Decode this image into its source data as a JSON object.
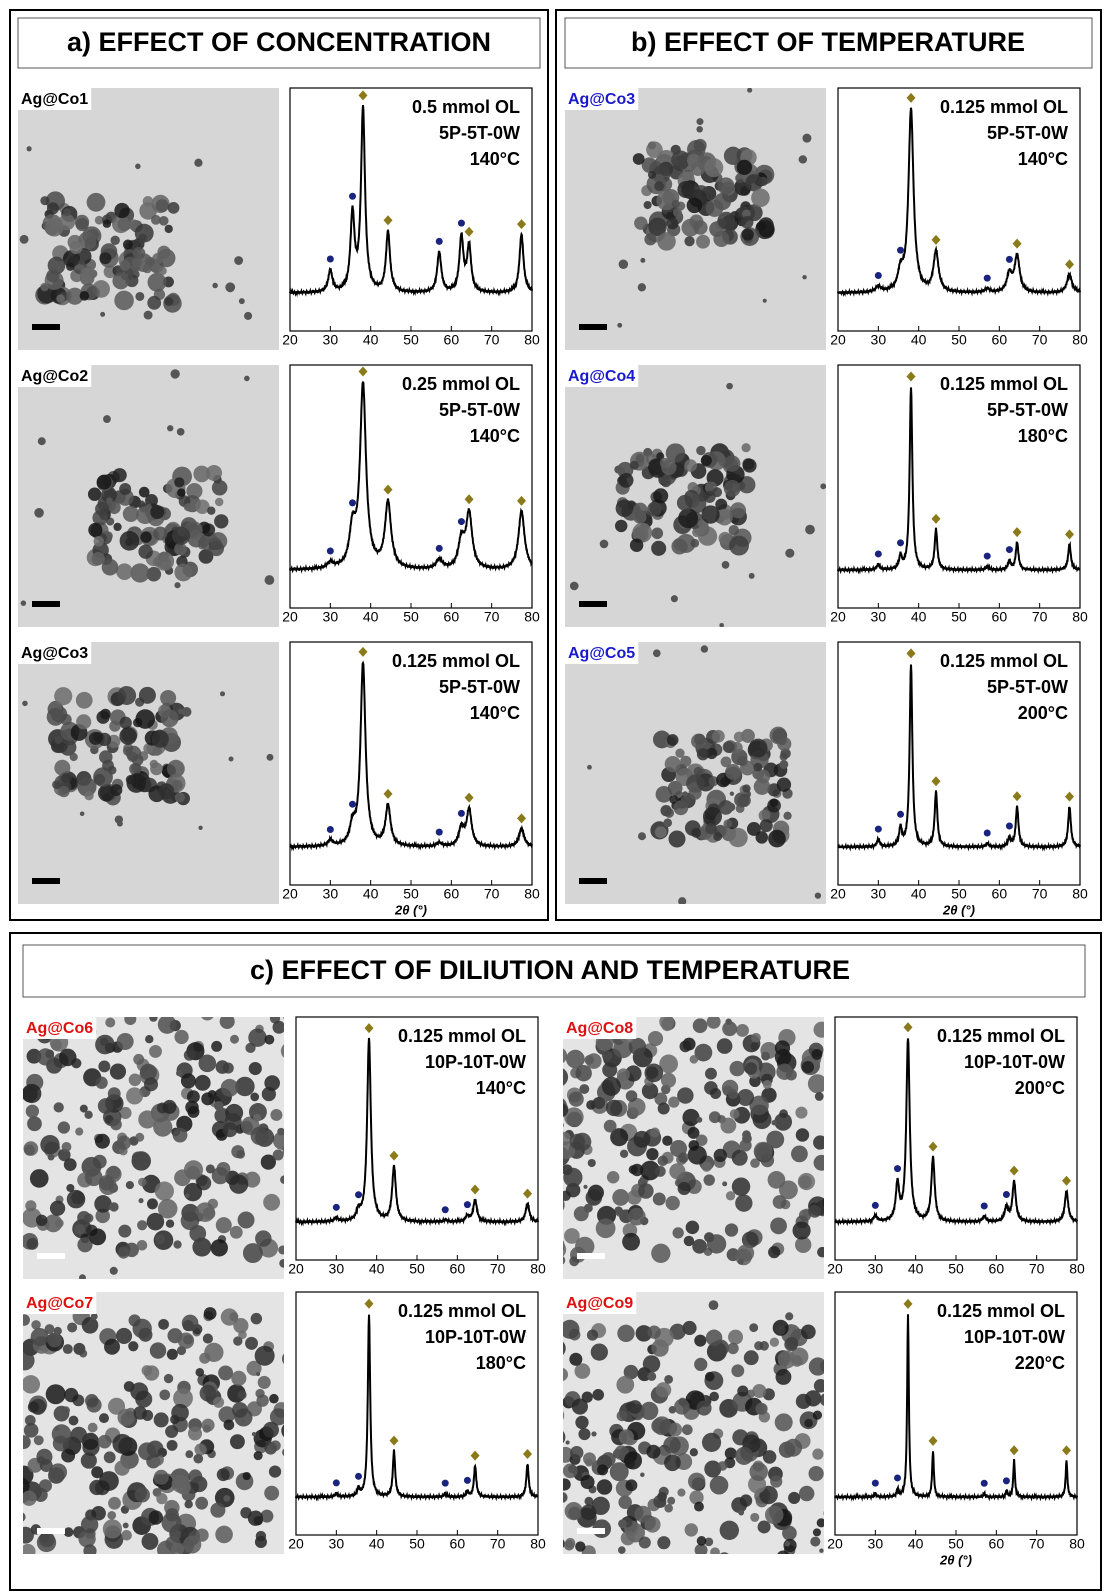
{
  "xrd": {
    "xlim": [
      20,
      80
    ],
    "xticks": [
      20,
      30,
      40,
      50,
      60,
      70,
      80
    ],
    "xlabel": "2θ (°)",
    "ag_peaks": [
      38.1,
      44.3,
      64.4,
      77.4
    ],
    "co_peaks": [
      30,
      35.5,
      57,
      62.5
    ],
    "ag_color": "#8a7a1a",
    "co_color": "#1a237e"
  },
  "panels": [
    {
      "title": "a) EFFECT OF CONCENTRATION",
      "label_color": "#000000",
      "samples": [
        {
          "label": "Ag@Co1",
          "conditions": [
            "0.5 mmol OL",
            "5P-5T-0W",
            "140°C"
          ],
          "ag_heights": [
            1,
            0.33,
            0.25,
            0.32
          ],
          "co_heights": [
            0.12,
            0.42,
            0.22,
            0.3
          ],
          "peak_width": 1.2
        },
        {
          "label": "Ag@Co2",
          "conditions": [
            "0.25 mmol OL",
            "5P-5T-0W",
            "140°C"
          ],
          "ag_heights": [
            1,
            0.36,
            0.3,
            0.32
          ],
          "co_heights": [
            0.03,
            0.2,
            0.05,
            0.15
          ],
          "peak_width": 1.8
        },
        {
          "label": "Ag@Co3",
          "conditions": [
            "0.125 mmol OL",
            "5P-5T-0W",
            "140°C"
          ],
          "ag_heights": [
            1,
            0.22,
            0.2,
            0.1
          ],
          "co_heights": [
            0.03,
            0.1,
            0.02,
            0.1
          ],
          "peak_width": 1.5
        }
      ]
    },
    {
      "title": "b) EFFECT OF TEMPERATURE",
      "label_color": "#1a1acc",
      "samples": [
        {
          "label": "Ag@Co3",
          "conditions": [
            "0.125 mmol OL",
            "5P-5T-0W",
            "140°C"
          ],
          "ag_heights": [
            1,
            0.22,
            0.2,
            0.1
          ],
          "co_heights": [
            0.03,
            0.1,
            0.02,
            0.1
          ],
          "peak_width": 1.5
        },
        {
          "label": "Ag@Co4",
          "conditions": [
            "0.125 mmol OL",
            "5P-5T-0W",
            "180°C"
          ],
          "ag_heights": [
            1,
            0.22,
            0.15,
            0.14
          ],
          "co_heights": [
            0.03,
            0.07,
            0.02,
            0.05
          ],
          "peak_width": 0.8
        },
        {
          "label": "Ag@Co5",
          "conditions": [
            "0.125 mmol OL",
            "5P-5T-0W",
            "200°C"
          ],
          "ag_heights": [
            1,
            0.3,
            0.22,
            0.22
          ],
          "co_heights": [
            0.04,
            0.1,
            0.02,
            0.05
          ],
          "peak_width": 0.8
        }
      ]
    },
    {
      "title": "c) EFFECT OF DILIUTION AND TEMPERATURE",
      "label_color": "#e01010",
      "samples": [
        {
          "label": "Ag@Co6",
          "conditions": [
            "0.125 mmol OL",
            "10P-10T-0W",
            "140°C"
          ],
          "ag_heights": [
            1,
            0.3,
            0.12,
            0.1
          ],
          "co_heights": [
            0.02,
            0.05,
            0.01,
            0.03
          ],
          "peak_width": 1.1
        },
        {
          "label": "Ag@Co7",
          "conditions": [
            "0.125 mmol OL",
            "10P-10T-0W",
            "180°C"
          ],
          "ag_heights": [
            1,
            0.25,
            0.17,
            0.18
          ],
          "co_heights": [
            0.02,
            0.04,
            0.02,
            0.03
          ],
          "peak_width": 0.7
        },
        {
          "label": "Ag@Co8",
          "conditions": [
            "0.125 mmol OL",
            "10P-10T-0W",
            "200°C"
          ],
          "ag_heights": [
            1,
            0.35,
            0.22,
            0.17
          ],
          "co_heights": [
            0.03,
            0.2,
            0.03,
            0.08
          ],
          "peak_width": 1.0
        },
        {
          "label": "Ag@Co9",
          "conditions": [
            "0.125 mmol OL",
            "10P-10T-0W",
            "220°C"
          ],
          "ag_heights": [
            1,
            0.25,
            0.2,
            0.2
          ],
          "co_heights": [
            0.02,
            0.04,
            0.02,
            0.03
          ],
          "peak_width": 0.5
        }
      ]
    }
  ]
}
